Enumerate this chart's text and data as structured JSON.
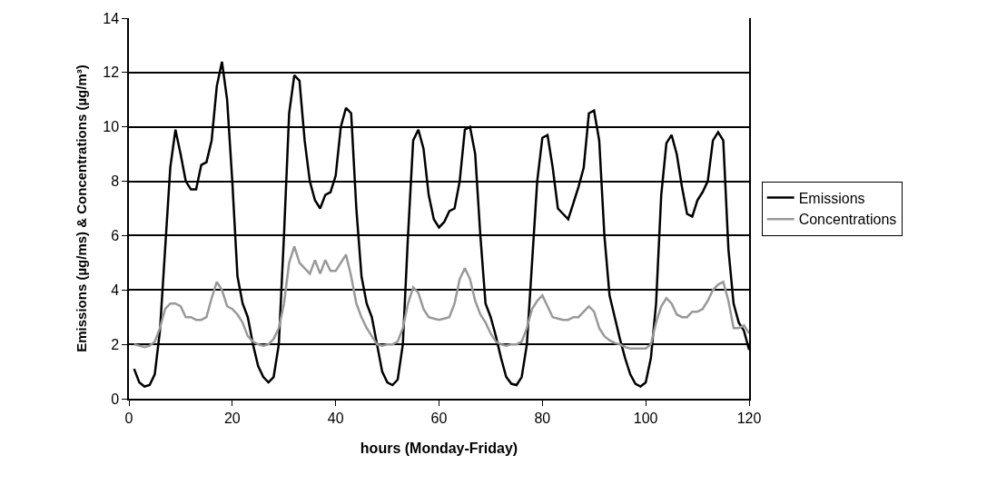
{
  "chart_data": {
    "type": "line",
    "xlabel": "hours (Monday-Friday)",
    "ylabel": "Emissions (µg/ms) & Concentrations (µg/m³)",
    "x": [
      1,
      2,
      3,
      4,
      5,
      6,
      7,
      8,
      9,
      10,
      11,
      12,
      13,
      14,
      15,
      16,
      17,
      18,
      19,
      20,
      21,
      22,
      23,
      24,
      25,
      26,
      27,
      28,
      29,
      30,
      31,
      32,
      33,
      34,
      35,
      36,
      37,
      38,
      39,
      40,
      41,
      42,
      43,
      44,
      45,
      46,
      47,
      48,
      49,
      50,
      51,
      52,
      53,
      54,
      55,
      56,
      57,
      58,
      59,
      60,
      61,
      62,
      63,
      64,
      65,
      66,
      67,
      68,
      69,
      70,
      71,
      72,
      73,
      74,
      75,
      76,
      77,
      78,
      79,
      80,
      81,
      82,
      83,
      84,
      85,
      86,
      87,
      88,
      89,
      90,
      91,
      92,
      93,
      94,
      95,
      96,
      97,
      98,
      99,
      100,
      101,
      102,
      103,
      104,
      105,
      106,
      107,
      108,
      109,
      110,
      111,
      112,
      113,
      114,
      115,
      116,
      117,
      118,
      119,
      120
    ],
    "series": [
      {
        "name": "Emissions",
        "color": "#000000",
        "values": [
          1.1,
          0.6,
          0.45,
          0.5,
          0.9,
          2.5,
          5.5,
          8.5,
          9.9,
          9.0,
          8.0,
          7.7,
          7.7,
          8.6,
          8.7,
          9.5,
          11.5,
          12.4,
          11.0,
          8.0,
          4.5,
          3.5,
          3.0,
          2.0,
          1.2,
          0.8,
          0.6,
          0.8,
          2.0,
          6.0,
          10.5,
          11.9,
          11.7,
          9.5,
          8.0,
          7.3,
          7.0,
          7.5,
          7.6,
          8.2,
          10.0,
          10.7,
          10.5,
          7.0,
          4.5,
          3.5,
          3.0,
          2.0,
          1.0,
          0.6,
          0.5,
          0.7,
          2.0,
          6.0,
          9.5,
          9.9,
          9.2,
          7.5,
          6.6,
          6.3,
          6.5,
          6.9,
          7.0,
          8.0,
          9.9,
          10.0,
          9.0,
          6.0,
          3.5,
          3.0,
          2.3,
          1.5,
          0.8,
          0.55,
          0.5,
          0.8,
          2.0,
          5.0,
          8.0,
          9.6,
          9.7,
          8.5,
          7.0,
          6.8,
          6.6,
          7.2,
          7.8,
          8.5,
          10.5,
          10.6,
          9.5,
          6.0,
          3.8,
          3.0,
          2.2,
          1.5,
          0.9,
          0.55,
          0.45,
          0.6,
          1.5,
          3.5,
          7.5,
          9.4,
          9.7,
          9.0,
          7.8,
          6.8,
          6.7,
          7.3,
          7.6,
          8.0,
          9.5,
          9.8,
          9.5,
          5.5,
          3.5,
          2.8,
          2.5,
          1.8
        ]
      },
      {
        "name": "Concentrations",
        "color": "#999999",
        "values": [
          2.0,
          1.95,
          1.9,
          1.95,
          2.1,
          2.6,
          3.3,
          3.5,
          3.5,
          3.4,
          3.0,
          3.0,
          2.9,
          2.9,
          3.0,
          3.7,
          4.3,
          4.0,
          3.4,
          3.3,
          3.1,
          2.8,
          2.3,
          2.1,
          2.0,
          1.95,
          2.0,
          2.2,
          2.6,
          3.5,
          5.0,
          5.6,
          5.0,
          4.8,
          4.6,
          5.1,
          4.6,
          5.1,
          4.7,
          4.7,
          5.0,
          5.3,
          4.5,
          3.5,
          3.0,
          2.6,
          2.3,
          2.0,
          1.95,
          2.0,
          2.0,
          2.1,
          2.6,
          3.5,
          4.1,
          3.9,
          3.3,
          3.0,
          2.95,
          2.9,
          2.95,
          3.0,
          3.5,
          4.4,
          4.8,
          4.4,
          3.6,
          3.1,
          2.8,
          2.4,
          2.1,
          2.0,
          1.95,
          2.0,
          2.0,
          2.1,
          2.6,
          3.3,
          3.6,
          3.8,
          3.4,
          3.0,
          2.95,
          2.9,
          2.9,
          3.0,
          3.0,
          3.2,
          3.4,
          3.2,
          2.6,
          2.3,
          2.15,
          2.05,
          2.0,
          1.9,
          1.85,
          1.85,
          1.85,
          1.85,
          2.0,
          2.8,
          3.4,
          3.7,
          3.5,
          3.1,
          3.0,
          3.0,
          3.2,
          3.2,
          3.3,
          3.6,
          4.0,
          4.2,
          4.3,
          3.6,
          2.6,
          2.6,
          2.7,
          2.4
        ]
      }
    ],
    "xlim": [
      0,
      120
    ],
    "xticks": [
      0,
      20,
      40,
      60,
      80,
      100,
      120
    ],
    "ylim": [
      0,
      14
    ],
    "yticks": [
      0,
      2,
      4,
      6,
      8,
      10,
      12,
      14
    ],
    "grid": "y",
    "legend": "right",
    "marker": "none",
    "line_style": "solid"
  }
}
